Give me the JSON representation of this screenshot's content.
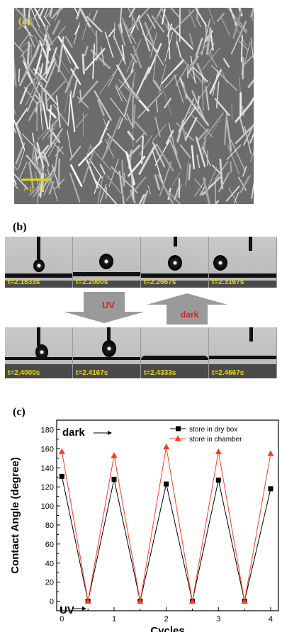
{
  "panel_a": {
    "label": "(a)",
    "scale_label": "1 μ m"
  },
  "panel_b": {
    "label": "(b)",
    "top_times": [
      "t=2.1833s",
      "t=2.2000s",
      "t=2.2667s",
      "t=2.3167s"
    ],
    "bottom_times": [
      "t=2.4000s",
      "t=2.4167s",
      "t=2.4333s",
      "t=2.4667s"
    ],
    "uv_label": "UV",
    "dark_label": "dark",
    "colors": {
      "time_text": "#f0d800",
      "arrow_text": "#e41c1c",
      "arrow_fill": "#9a9a9a"
    }
  },
  "panel_c": {
    "label": "(c)",
    "annotation_dark": "dark",
    "annotation_uv": "UV"
  },
  "chart_data": {
    "type": "line",
    "xlabel": "Cycles",
    "ylabel": "Contact Angle (degree)",
    "xlim": [
      -0.1,
      4.15
    ],
    "ylim": [
      -10,
      190
    ],
    "xticks": [
      "0",
      "1",
      "2",
      "3",
      "4"
    ],
    "yticks": [
      "0",
      "20",
      "40",
      "60",
      "80",
      "100",
      "120",
      "140",
      "160",
      "180"
    ],
    "x": [
      0,
      0.5,
      1,
      1.5,
      2,
      2.5,
      3,
      3.5,
      4
    ],
    "series": [
      {
        "name": "store in dry box",
        "color": "#000000",
        "marker": "square",
        "values": [
          131,
          0,
          128,
          0,
          123,
          0,
          127,
          0,
          118
        ]
      },
      {
        "name": "store in chamber",
        "color": "#ff3b1f",
        "marker": "triangle",
        "values": [
          157,
          0,
          153,
          0,
          162,
          0,
          157,
          0,
          155
        ]
      }
    ],
    "legend_position": "top-right",
    "grid": false
  }
}
